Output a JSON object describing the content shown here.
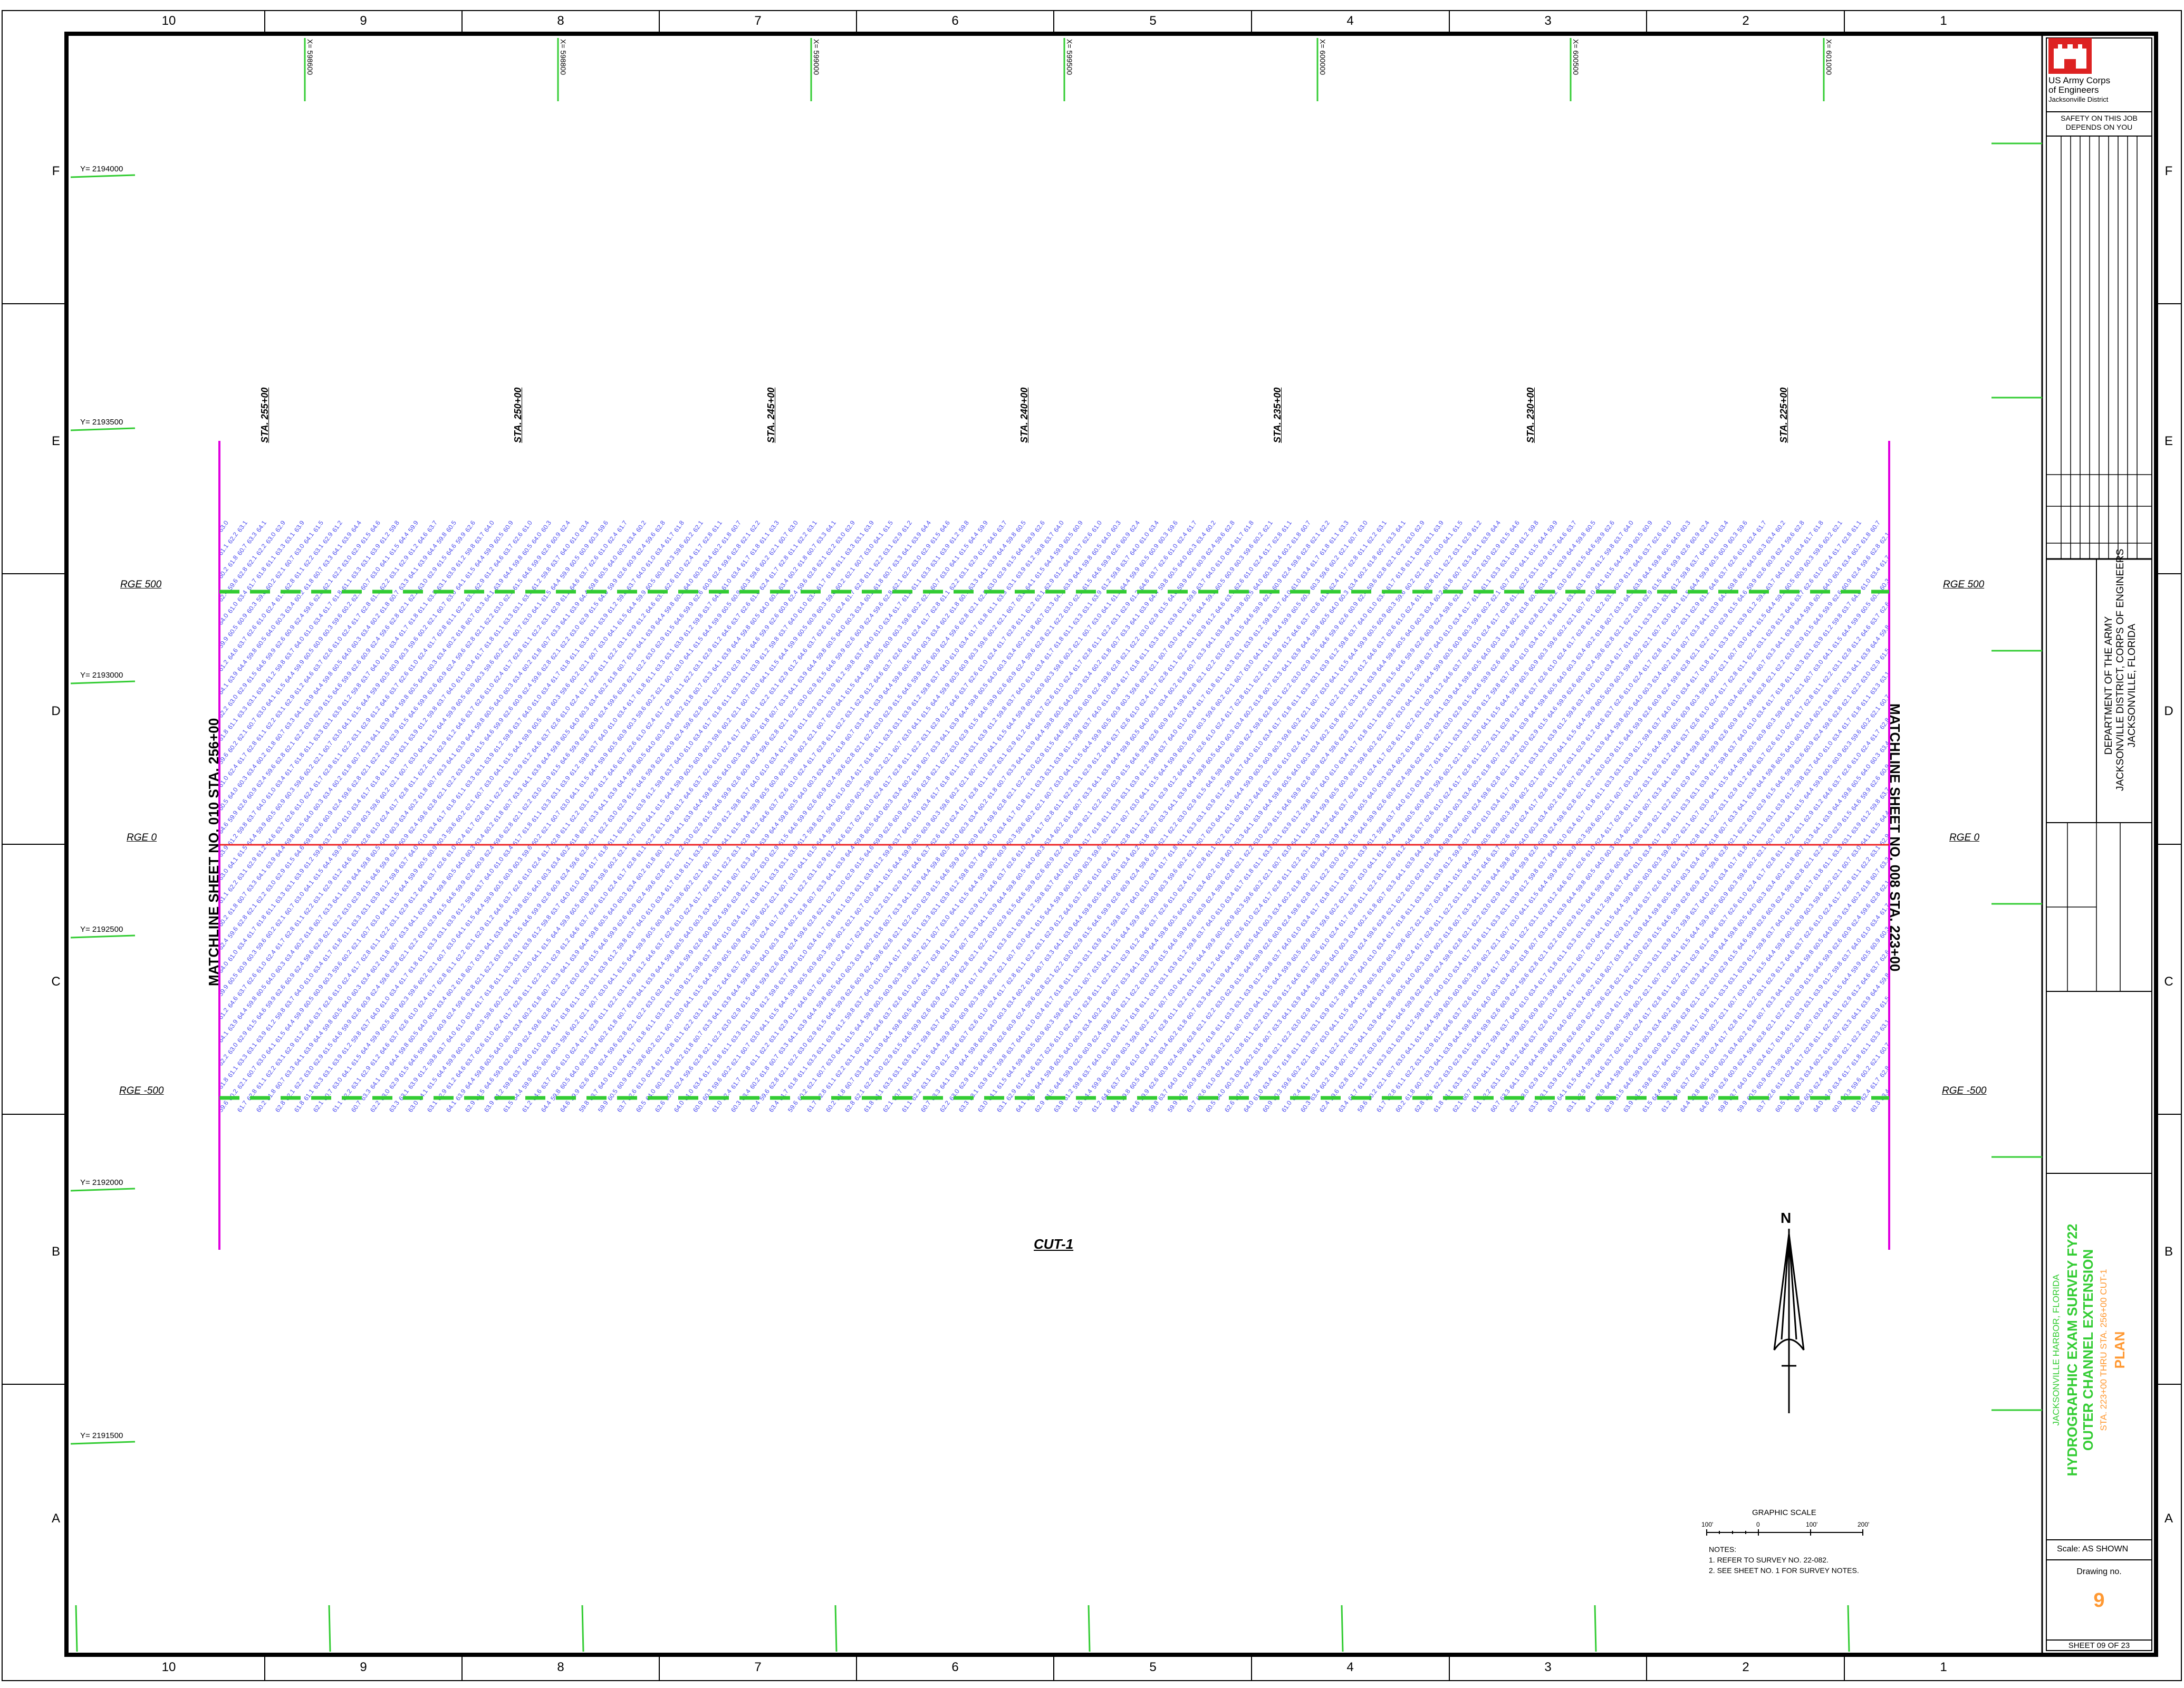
{
  "border": {
    "columns": [
      "10",
      "9",
      "8",
      "7",
      "6",
      "5",
      "4",
      "3",
      "2",
      "1"
    ],
    "rows": [
      "F",
      "E",
      "D",
      "C",
      "B",
      "A"
    ]
  },
  "grid": {
    "x_labels": [
      "X= 598600",
      "X= 598800",
      "X= 599000",
      "X= 599500",
      "X= 600000",
      "X= 600500",
      "X= 601000"
    ],
    "y_labels": [
      "Y= 2194000",
      "Y= 2193500",
      "Y= 2193000",
      "Y= 2192500",
      "Y= 2192000",
      "Y= 2191500"
    ]
  },
  "stations": [
    "STA. 255+00",
    "STA. 250+00",
    "STA. 245+00",
    "STA. 240+00",
    "STA. 235+00",
    "STA. 230+00",
    "STA. 225+00"
  ],
  "ranges": {
    "top": "RGE 500",
    "center": "RGE 0",
    "bottom": "RGE -500"
  },
  "matchlines": {
    "left": "MATCHLINE SHEET NO. 010 STA. 256+00",
    "right": "MATCHLINE SHEET NO. 008 STA. 223+00"
  },
  "cut_label": "CUT-1",
  "soundings_sample": [
    "63.0",
    "62.6",
    "61.1",
    "59.8",
    "60.2",
    "61.5",
    "62.4",
    "63.1",
    "64.0",
    "60.7",
    "59.9",
    "62.8",
    "61.2",
    "63.4",
    "64.1",
    "60.9",
    "62.2",
    "63.7",
    "61.8",
    "64.4",
    "59.6",
    "62.9",
    "61.0",
    "63.3",
    "60.5",
    "62.1",
    "64.6",
    "61.7",
    "63.9",
    "60.3"
  ],
  "north_arrow": {
    "letter": "N"
  },
  "scale": {
    "title": "GRAPHIC SCALE",
    "ticks": [
      "100'",
      "0",
      "100'",
      "200'"
    ]
  },
  "notes": {
    "title": "NOTES:",
    "items": [
      "1. REFER TO SURVEY NO. 22-082.",
      "2. SEE SHEET NO. 1 FOR SURVEY NOTES."
    ]
  },
  "title_block": {
    "org_line1": "US Army Corps",
    "org_line2": "of Engineers",
    "org_line3": "Jacksonville District",
    "safety": "SAFETY ON THIS JOB DEPENDS ON YOU",
    "dept_line1": "DEPARTMENT OF THE ARMY",
    "dept_line2": "JACKSONVILLE DISTRICT, CORPS OF ENGINEERS",
    "dept_line3": "JACKSONVILLE, FLORIDA",
    "project_location": "JACKSONVILLE HARBOR, FLORIDA",
    "title_line1": "HYDROGRAPHIC EXAM SURVEY FY22",
    "title_line2": "OUTER CHANNEL EXTENSION",
    "subtitle": "STA. 223+00 THRU STA. 256+00 CUT-1",
    "view": "PLAN",
    "scale_label": "Scale:",
    "scale_value": "AS SHOWN",
    "drawing_no_label": "Drawing no.",
    "drawing_no": "9",
    "sheet": "SHEET  09  OF  23",
    "accent_green": "#33cc33",
    "accent_orange": "#ff9933",
    "accent_red": "#dd2222"
  }
}
